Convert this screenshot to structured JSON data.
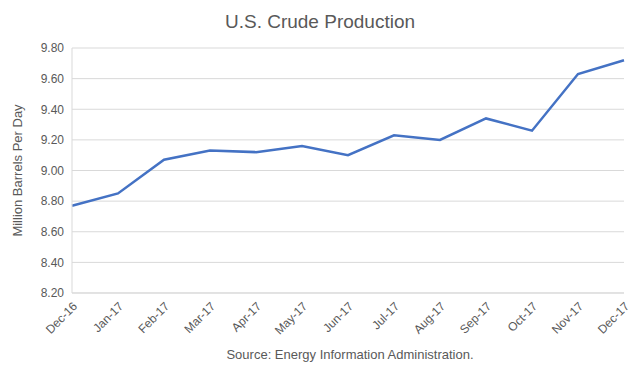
{
  "chart_data": {
    "type": "line",
    "title": "U.S. Crude Production",
    "y_label": "Million Barrels Per Day",
    "source": "Source: Energy Information Administration.",
    "categories": [
      "Dec-16",
      "Jan-17",
      "Feb-17",
      "Mar-17",
      "Apr-17",
      "May-17",
      "Jun-17",
      "Jul-17",
      "Aug-17",
      "Sep-17",
      "Oct-17",
      "Nov-17",
      "Dec-17"
    ],
    "values": [
      8.77,
      8.85,
      9.07,
      9.13,
      9.12,
      9.16,
      9.1,
      9.23,
      9.2,
      9.34,
      9.26,
      9.63,
      9.72
    ],
    "color": "#4472c4",
    "ylim": [
      8.2,
      9.8
    ],
    "yticks": [
      {
        "value": 8.2,
        "label": "8.20"
      },
      {
        "value": 8.4,
        "label": "8.40"
      },
      {
        "value": 8.6,
        "label": "8.60"
      },
      {
        "value": 8.8,
        "label": "8.80"
      },
      {
        "value": 9.0,
        "label": "9.00"
      },
      {
        "value": 9.2,
        "label": "9.20"
      },
      {
        "value": 9.4,
        "label": "9.40"
      },
      {
        "value": 9.6,
        "label": "9.60"
      },
      {
        "value": 9.8,
        "label": "9.80"
      }
    ],
    "grid": true
  }
}
